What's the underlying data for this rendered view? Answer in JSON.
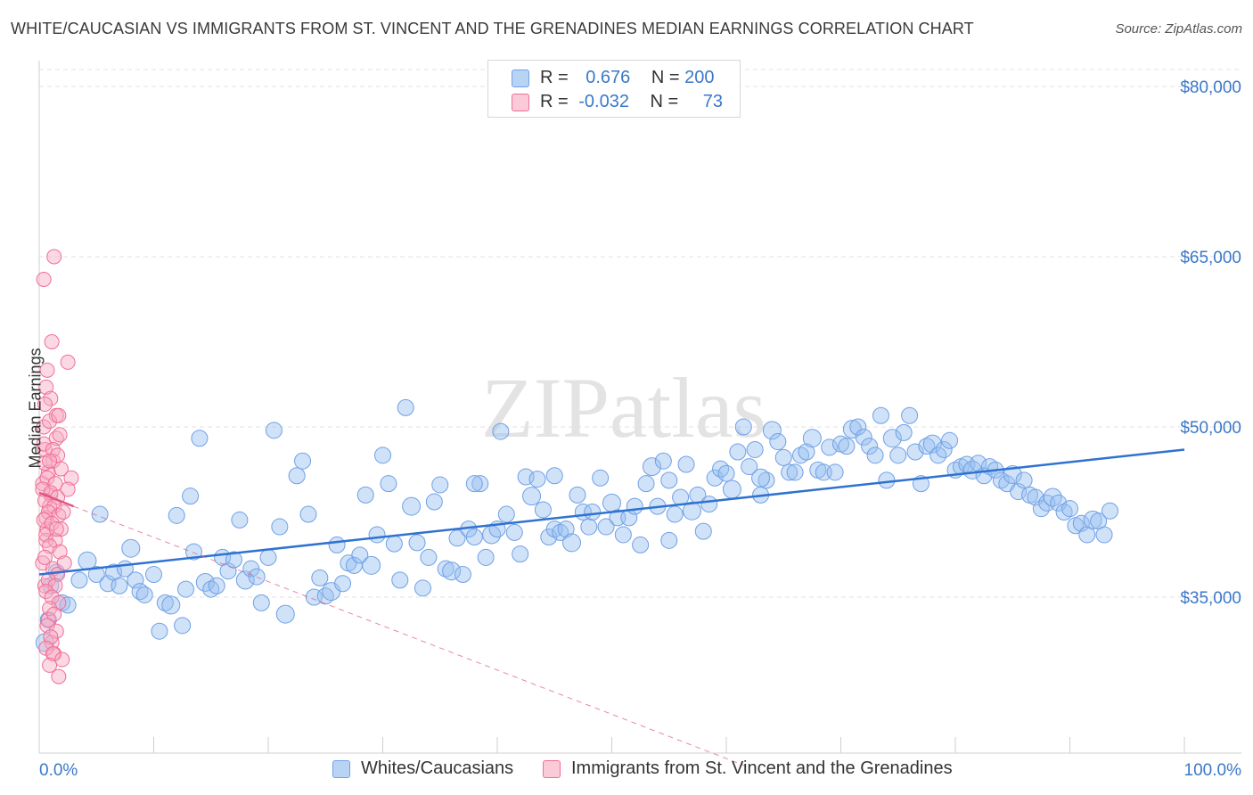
{
  "title": "WHITE/CAUCASIAN VS IMMIGRANTS FROM ST. VINCENT AND THE GRENADINES MEDIAN EARNINGS CORRELATION CHART",
  "source": "Source: ZipAtlas.com",
  "watermark": "ZIPatlas",
  "legend": {
    "rows": [
      {
        "r_label": "R =",
        "r_value": "0.676",
        "n_label": "N =",
        "n_value": "200",
        "color": "#a9c8f0"
      },
      {
        "r_label": "R =",
        "r_value": "-0.032",
        "n_label": "N =",
        "n_value": "73",
        "color": "#f7b6c8"
      }
    ]
  },
  "bottom_legend": [
    {
      "label": "Whites/Caucasians",
      "color": "#a9c8f0"
    },
    {
      "label": "Immigrants from St. Vincent and the Grenadines",
      "color": "#f7b6c8"
    }
  ],
  "chart_data": {
    "type": "scatter",
    "ylabel": "Median Earnings",
    "x_tick_labels": [
      "0.0%",
      "100.0%"
    ],
    "y_tick_labels": [
      "$35,000",
      "$50,000",
      "$65,000",
      "$80,000"
    ],
    "xlim": [
      0,
      100
    ],
    "ylim": [
      20000,
      82000
    ],
    "grid": true,
    "legend_position": "top-center",
    "colors": {
      "white": "#6fa0e6",
      "white_fill": "rgba(150,190,240,0.45)",
      "white_line": "#2f72d0",
      "svg": "#f06e96",
      "svg_fill": "rgba(247,170,195,0.45)",
      "svg_line": "#e0557f",
      "axis_label": "#3a78c9"
    },
    "series": [
      {
        "name": "Whites/Caucasians",
        "trend": {
          "x": [
            0,
            100
          ],
          "y": [
            37000,
            48000
          ]
        },
        "points": [
          [
            0.5,
            31
          ],
          [
            0.8,
            33
          ],
          [
            1,
            36
          ],
          [
            1.5,
            37.2
          ],
          [
            2,
            34.5
          ],
          [
            2.5,
            34.3
          ],
          [
            3.5,
            36.5
          ],
          [
            4.2,
            38.2
          ],
          [
            5,
            37
          ],
          [
            5.3,
            42.3
          ],
          [
            6,
            36.2
          ],
          [
            6.5,
            37.2
          ],
          [
            7,
            36
          ],
          [
            7.5,
            37.5
          ],
          [
            8,
            39.3
          ],
          [
            8.4,
            36.5
          ],
          [
            8.8,
            35.5
          ],
          [
            9.2,
            35.2
          ],
          [
            10,
            37
          ],
          [
            10.5,
            32
          ],
          [
            11,
            34.5
          ],
          [
            11.5,
            34.3
          ],
          [
            12,
            42.2
          ],
          [
            12.5,
            32.5
          ],
          [
            12.8,
            35.7
          ],
          [
            13.2,
            43.9
          ],
          [
            13.5,
            39
          ],
          [
            14,
            49
          ],
          [
            14.5,
            36.3
          ],
          [
            15,
            35.7
          ],
          [
            15.5,
            36
          ],
          [
            16,
            38.5
          ],
          [
            16.5,
            37.3
          ],
          [
            17,
            38.3
          ],
          [
            17.5,
            41.8
          ],
          [
            18,
            36.5
          ],
          [
            18.5,
            37.5
          ],
          [
            19,
            36.8
          ],
          [
            19.4,
            34.5
          ],
          [
            20,
            38.5
          ],
          [
            20.5,
            49.7
          ],
          [
            21,
            41.2
          ],
          [
            21.5,
            33.5
          ],
          [
            22.5,
            45.7
          ],
          [
            23,
            47
          ],
          [
            23.5,
            42.3
          ],
          [
            24,
            35
          ],
          [
            24.5,
            36.7
          ],
          [
            25,
            35.1
          ],
          [
            25.5,
            35.5
          ],
          [
            26,
            39.6
          ],
          [
            26.5,
            36.2
          ],
          [
            27,
            38
          ],
          [
            27.5,
            37.8
          ],
          [
            28,
            38.7
          ],
          [
            28.5,
            44
          ],
          [
            29,
            37.8
          ],
          [
            29.5,
            40.5
          ],
          [
            30,
            47.5
          ],
          [
            30.5,
            45
          ],
          [
            31,
            39.7
          ],
          [
            31.5,
            36.5
          ],
          [
            32,
            51.7
          ],
          [
            32.5,
            43
          ],
          [
            33,
            39.8
          ],
          [
            33.5,
            35.8
          ],
          [
            34,
            38.5
          ],
          [
            34.5,
            43.4
          ],
          [
            35,
            44.9
          ],
          [
            35.5,
            37.5
          ],
          [
            36,
            37.3
          ],
          [
            36.5,
            40.2
          ],
          [
            37,
            37
          ],
          [
            37.5,
            41
          ],
          [
            38,
            40.3
          ],
          [
            38.5,
            45
          ],
          [
            39,
            38.5
          ],
          [
            39.5,
            40.5
          ],
          [
            40,
            41
          ],
          [
            40.3,
            49.6
          ],
          [
            40.8,
            42.3
          ],
          [
            41.5,
            40.7
          ],
          [
            42,
            38.8
          ],
          [
            42.5,
            45.6
          ],
          [
            43,
            43.9
          ],
          [
            43.5,
            45.4
          ],
          [
            44,
            42.7
          ],
          [
            44.5,
            40.3
          ],
          [
            45,
            41
          ],
          [
            45.5,
            40.7
          ],
          [
            46,
            41
          ],
          [
            46.5,
            39.8
          ],
          [
            47,
            44
          ],
          [
            47.5,
            42.5
          ],
          [
            48,
            41.2
          ],
          [
            48.3,
            42.5
          ],
          [
            49,
            45.5
          ],
          [
            49.5,
            41.2
          ],
          [
            50,
            43.3
          ],
          [
            50.5,
            42
          ],
          [
            51,
            40.5
          ],
          [
            51.5,
            42
          ],
          [
            52,
            43
          ],
          [
            52.5,
            39.6
          ],
          [
            53,
            45
          ],
          [
            53.5,
            46.5
          ],
          [
            54,
            43
          ],
          [
            54.5,
            47
          ],
          [
            55,
            45.3
          ],
          [
            55.5,
            42.3
          ],
          [
            56,
            43.8
          ],
          [
            56.5,
            46.7
          ],
          [
            57,
            42.6
          ],
          [
            57.5,
            44
          ],
          [
            58,
            40.8
          ],
          [
            58.5,
            43.2
          ],
          [
            59,
            45.5
          ],
          [
            59.5,
            46.3
          ],
          [
            60,
            45.9
          ],
          [
            60.5,
            44.5
          ],
          [
            61,
            47.8
          ],
          [
            61.5,
            50
          ],
          [
            62,
            46.5
          ],
          [
            62.5,
            48
          ],
          [
            63,
            44
          ],
          [
            63.5,
            45.3
          ],
          [
            64,
            49.7
          ],
          [
            64.5,
            48.7
          ],
          [
            65,
            47.3
          ],
          [
            65.5,
            46
          ],
          [
            66,
            46
          ],
          [
            66.5,
            47.5
          ],
          [
            67,
            47.8
          ],
          [
            67.5,
            49
          ],
          [
            68,
            46.2
          ],
          [
            68.5,
            46
          ],
          [
            69,
            48.2
          ],
          [
            69.5,
            46
          ],
          [
            70,
            48.5
          ],
          [
            70.5,
            48.3
          ],
          [
            71,
            49.8
          ],
          [
            71.5,
            50
          ],
          [
            72,
            49.1
          ],
          [
            72.5,
            48.3
          ],
          [
            73,
            47.5
          ],
          [
            73.5,
            51
          ],
          [
            74,
            45.3
          ],
          [
            74.5,
            49
          ],
          [
            75,
            47.5
          ],
          [
            75.5,
            49.5
          ],
          [
            76,
            51
          ],
          [
            76.5,
            47.8
          ],
          [
            77,
            45
          ],
          [
            77.5,
            48.3
          ],
          [
            78,
            48.5
          ],
          [
            78.5,
            47.5
          ],
          [
            79,
            48
          ],
          [
            79.5,
            48.8
          ],
          [
            80,
            46.2
          ],
          [
            80.5,
            46.5
          ],
          [
            81,
            46.7
          ],
          [
            81.5,
            46.2
          ],
          [
            82,
            46.8
          ],
          [
            82.5,
            45.7
          ],
          [
            83,
            46.5
          ],
          [
            83.5,
            46.2
          ],
          [
            84,
            45.3
          ],
          [
            84.5,
            45
          ],
          [
            85,
            45.8
          ],
          [
            85.5,
            44.3
          ],
          [
            86,
            45.3
          ],
          [
            86.5,
            44
          ],
          [
            87,
            43.8
          ],
          [
            87.5,
            42.8
          ],
          [
            88,
            43.3
          ],
          [
            88.5,
            43.8
          ],
          [
            89,
            43.3
          ],
          [
            89.5,
            42.5
          ],
          [
            90,
            42.8
          ],
          [
            90.5,
            41.3
          ],
          [
            91,
            41.5
          ],
          [
            91.5,
            40.5
          ],
          [
            92,
            41.8
          ],
          [
            92.5,
            41.7
          ],
          [
            93,
            40.5
          ],
          [
            93.5,
            42.6
          ],
          [
            45,
            45.7
          ],
          [
            38,
            45
          ],
          [
            55,
            40
          ],
          [
            63,
            45.5
          ]
        ]
      },
      {
        "name": "Immigrants from St. Vincent and the Grenadines",
        "trend": {
          "x": [
            0,
            3
          ],
          "y": [
            44200,
            43000
          ]
        },
        "trend_dashed": {
          "x": [
            3,
            62
          ],
          "y": [
            43000,
            20000
          ]
        },
        "points": [
          [
            0.3,
            45
          ],
          [
            0.5,
            48
          ],
          [
            0.6,
            42
          ],
          [
            0.4,
            50
          ],
          [
            0.8,
            46
          ],
          [
            1,
            44
          ],
          [
            0.7,
            41
          ],
          [
            1.2,
            47
          ],
          [
            1.5,
            49
          ],
          [
            0.9,
            43
          ],
          [
            0.3,
            38
          ],
          [
            0.5,
            36
          ],
          [
            0.6,
            40
          ],
          [
            0.8,
            33
          ],
          [
            1.1,
            31
          ],
          [
            1.3,
            30
          ],
          [
            1.7,
            28
          ],
          [
            0.4,
            63
          ],
          [
            1.3,
            65
          ],
          [
            1.1,
            57.5
          ],
          [
            2.5,
            55.7
          ],
          [
            0.7,
            55
          ],
          [
            0.6,
            53.5
          ],
          [
            1,
            52.5
          ],
          [
            1.5,
            51
          ],
          [
            0.9,
            50.5
          ],
          [
            1.8,
            49.3
          ],
          [
            0.4,
            48.5
          ],
          [
            1.2,
            48
          ],
          [
            1.6,
            47.5
          ],
          [
            0.5,
            46.8
          ],
          [
            1.9,
            46.3
          ],
          [
            0.7,
            45.5
          ],
          [
            1.4,
            45
          ],
          [
            2.8,
            45.5
          ],
          [
            0.3,
            44.5
          ],
          [
            1,
            44.2
          ],
          [
            1.6,
            43.8
          ],
          [
            0.5,
            43.5
          ],
          [
            1.3,
            43
          ],
          [
            0.8,
            42.5
          ],
          [
            1.7,
            42.2
          ],
          [
            0.4,
            41.8
          ],
          [
            1.1,
            41.5
          ],
          [
            1.9,
            41
          ],
          [
            0.6,
            40.5
          ],
          [
            1.4,
            40
          ],
          [
            0.9,
            39.5
          ],
          [
            1.8,
            39
          ],
          [
            0.5,
            38.5
          ],
          [
            1.2,
            37.5
          ],
          [
            1.6,
            37
          ],
          [
            0.8,
            36.5
          ],
          [
            1.4,
            36
          ],
          [
            0.6,
            35.5
          ],
          [
            1.1,
            35
          ],
          [
            1.7,
            34.5
          ],
          [
            0.9,
            34
          ],
          [
            1.3,
            33.5
          ],
          [
            0.7,
            32.5
          ],
          [
            1.5,
            32
          ],
          [
            1,
            31.5
          ],
          [
            0.6,
            30.5
          ],
          [
            1.2,
            30
          ],
          [
            2,
            29.5
          ],
          [
            0.9,
            29
          ],
          [
            2.5,
            44.5
          ],
          [
            2.2,
            38
          ],
          [
            1.5,
            41
          ],
          [
            0.9,
            47
          ],
          [
            1.7,
            51
          ],
          [
            0.5,
            52
          ],
          [
            2.1,
            42.5
          ]
        ]
      }
    ]
  }
}
